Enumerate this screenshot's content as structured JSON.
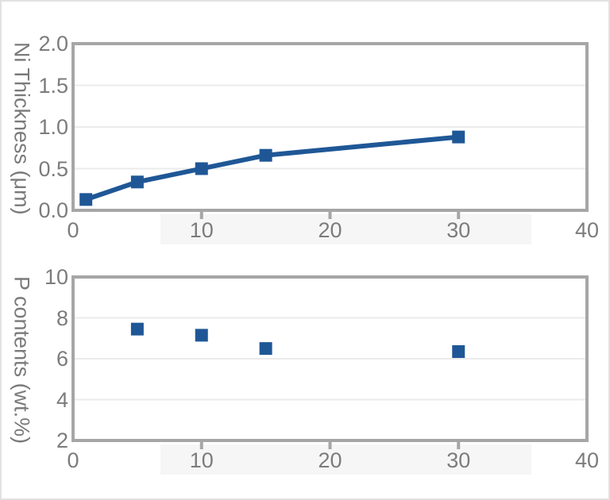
{
  "style": {
    "accent_blue": "#1f5796",
    "axis_color": "#a6a6a6",
    "grid_color": "#ebebeb",
    "tick_label_color": "#7c7c7c",
    "band_color": "#f6f6f6",
    "frame_border_color": "#e2e2e2",
    "background": "#ffffff"
  },
  "chart_data": [
    {
      "type": "line",
      "title": "",
      "xlabel": "",
      "ylabel": "Ni Thickness (μm)",
      "xlim": [
        0,
        40
      ],
      "ylim": [
        0,
        2
      ],
      "grid": "horizontal",
      "legend": "none",
      "x_ticks": [
        {
          "label": "0",
          "value": 0
        },
        {
          "label": "10",
          "value": 10
        },
        {
          "label": "20",
          "value": 20
        },
        {
          "label": "30",
          "value": 30
        },
        {
          "label": "40",
          "value": 40
        }
      ],
      "y_ticks": [
        {
          "label": "0.0",
          "value": 0
        },
        {
          "label": "0.5",
          "value": 0.5
        },
        {
          "label": "1.0",
          "value": 1
        },
        {
          "label": "1.5",
          "value": 1.5
        },
        {
          "label": "2.0",
          "value": 2
        }
      ],
      "gridlines": [
        0.5,
        1.0,
        1.5
      ],
      "series": [
        {
          "name": "Ni thickness",
          "marker": "square",
          "line": true,
          "x": [
            1,
            5,
            10,
            15,
            30
          ],
          "y": [
            0.13,
            0.34,
            0.5,
            0.66,
            0.88
          ]
        }
      ]
    },
    {
      "type": "scatter",
      "title": "",
      "xlabel": "",
      "ylabel": "P contents (wt.%)",
      "xlim": [
        0,
        40
      ],
      "ylim": [
        2,
        10
      ],
      "grid": "horizontal",
      "legend": "none",
      "x_ticks": [
        {
          "label": "0",
          "value": 0
        },
        {
          "label": "10",
          "value": 10
        },
        {
          "label": "20",
          "value": 20
        },
        {
          "label": "30",
          "value": 30
        },
        {
          "label": "40",
          "value": 40
        }
      ],
      "y_ticks": [
        {
          "label": "2",
          "value": 2
        },
        {
          "label": "4",
          "value": 4
        },
        {
          "label": "6",
          "value": 6
        },
        {
          "label": "8",
          "value": 8
        },
        {
          "label": "10",
          "value": 10
        }
      ],
      "gridlines": [
        4,
        6,
        8
      ],
      "series": [
        {
          "name": "P content",
          "marker": "square",
          "line": false,
          "x": [
            5,
            10,
            15,
            30
          ],
          "y": [
            7.45,
            7.15,
            6.5,
            6.35
          ]
        }
      ]
    }
  ]
}
